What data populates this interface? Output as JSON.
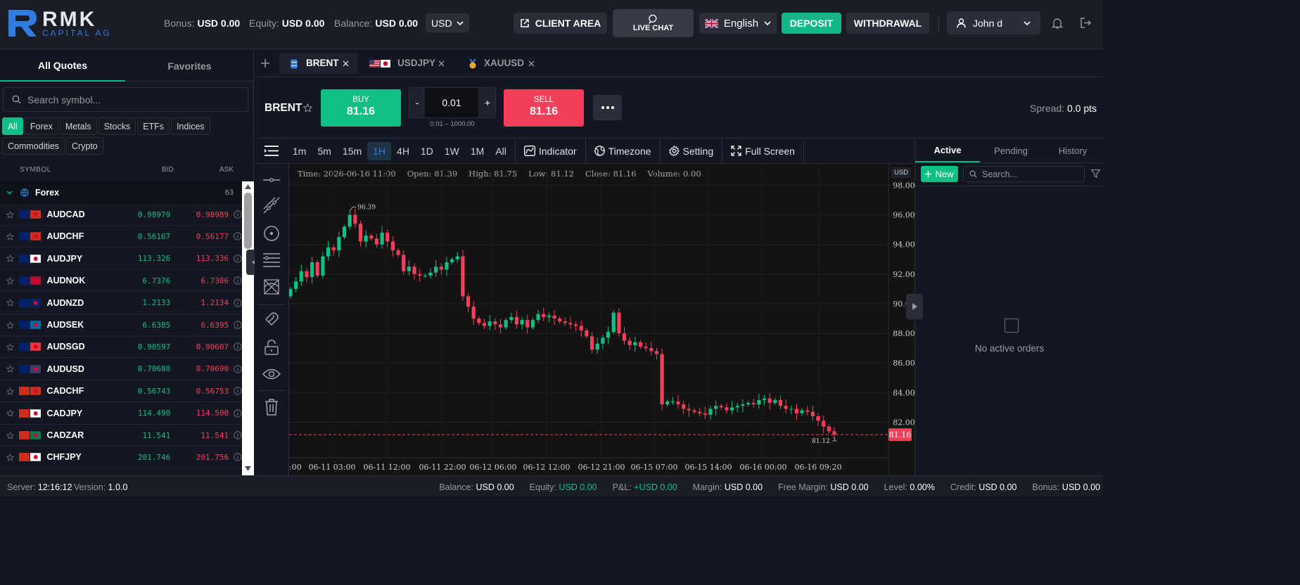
{
  "brand": {
    "name": "RMK",
    "tagline": "CAPITAL AG"
  },
  "header": {
    "bonus_label": "Bonus:",
    "bonus_value": "USD 0.00",
    "equity_label": "Equity:",
    "equity_value": "USD 0.00",
    "balance_label": "Balance:",
    "balance_value": "USD 0.00",
    "currency": "USD",
    "client_area": "CLIENT AREA",
    "live_chat": "LIVE CHAT",
    "language": "English",
    "deposit": "DEPOSIT",
    "withdrawal": "WITHDRAWAL",
    "user": "John d"
  },
  "quotes": {
    "tab_all": "All Quotes",
    "tab_fav": "Favorites",
    "search_placeholder": "Search symbol...",
    "filters": [
      "All",
      "Forex",
      "Metals",
      "Stocks",
      "ETFs",
      "Indices",
      "Commodities",
      "Crypto"
    ],
    "col_symbol": "SYMBOL",
    "col_bid": "BID",
    "col_ask": "ASK",
    "group_name": "Forex",
    "group_count": "63",
    "rows": [
      {
        "symbol": "AUDCAD",
        "bid": "0.98979",
        "ask": "0.98989",
        "f1": "#012169",
        "f2": "#d52b1e"
      },
      {
        "symbol": "AUDCHF",
        "bid": "0.56167",
        "ask": "0.56177",
        "f1": "#012169",
        "f2": "#d52b1e"
      },
      {
        "symbol": "AUDJPY",
        "bid": "113.326",
        "ask": "113.336",
        "f1": "#012169",
        "f2": "#ffffff"
      },
      {
        "symbol": "AUDNOK",
        "bid": "6.7376",
        "ask": "6.7386",
        "f1": "#012169",
        "f2": "#ba0c2f"
      },
      {
        "symbol": "AUDNZD",
        "bid": "1.2133",
        "ask": "1.2134",
        "f1": "#012169",
        "f2": "#012169"
      },
      {
        "symbol": "AUDSEK",
        "bid": "6.6385",
        "ask": "6.6395",
        "f1": "#012169",
        "f2": "#006aa7"
      },
      {
        "symbol": "AUDSGD",
        "bid": "0.90597",
        "ask": "0.90607",
        "f1": "#012169",
        "f2": "#ef3340"
      },
      {
        "symbol": "AUDUSD",
        "bid": "0.70680",
        "ask": "0.70690",
        "f1": "#012169",
        "f2": "#3c3b6e"
      },
      {
        "symbol": "CADCHF",
        "bid": "0.56743",
        "ask": "0.56753",
        "f1": "#d52b1e",
        "f2": "#d52b1e"
      },
      {
        "symbol": "CADJPY",
        "bid": "114.490",
        "ask": "114.500",
        "f1": "#d52b1e",
        "f2": "#ffffff"
      },
      {
        "symbol": "CADZAR",
        "bid": "11.541",
        "ask": "11.541",
        "f1": "#d52b1e",
        "f2": "#007a4d"
      },
      {
        "symbol": "CHFJPY",
        "bid": "201.746",
        "ask": "201.756",
        "f1": "#d52b1e",
        "f2": "#ffffff"
      }
    ]
  },
  "tabs": [
    {
      "symbol": "BRENT"
    },
    {
      "symbol": "USDJPY"
    },
    {
      "symbol": "XAUUSD"
    }
  ],
  "ticket": {
    "symbol": "BRENT",
    "buy_label": "BUY",
    "buy_price": "81.16",
    "sell_label": "SELL",
    "sell_price": "81.16",
    "lot": "0.01",
    "lot_range": "0.01 – 1000.00",
    "minus": "-",
    "plus": "+",
    "spread_label": "Spread:",
    "spread_value": "0.0 pts"
  },
  "toolbar": {
    "timeframes": [
      "1m",
      "5m",
      "15m",
      "1H",
      "4H",
      "1D",
      "1W",
      "1M",
      "All"
    ],
    "active_tf": "1H",
    "indicator": "Indicator",
    "timezone": "Timezone",
    "setting": "Setting",
    "fullscreen": "Full Screen"
  },
  "chart_info": {
    "time": "Time: 2026-06-16 11:00",
    "open": "Open: 81.39",
    "high": "High: 81.75",
    "low": "Low: 81.12",
    "close": "Close: 81.16",
    "volume": "Volume: 0.00",
    "currency": "USD",
    "max_label": "96.39",
    "min_label": "81.12",
    "last_price": "81.16"
  },
  "chart_data": {
    "type": "candlestick",
    "y_ticks": [
      "98.00",
      "96.00",
      "94.00",
      "92.00",
      "90.00",
      "88.00",
      "86.00",
      "84.00",
      "82.00"
    ],
    "ylim": [
      79.6,
      98.4
    ],
    "x_ticks": [
      ":00",
      "06-11 03:00",
      "06-11 12:00",
      "06-11 22:00",
      "06-12 06:00",
      "06-12 12:00",
      "06-12 21:00",
      "06-15 07:00",
      "06-15 14:00",
      "06-16 00:00",
      "06-16 09:20"
    ],
    "close": [
      91.0,
      91.5,
      92.2,
      91.8,
      92.8,
      91.9,
      93.2,
      93.8,
      93.6,
      94.5,
      95.2,
      96.0,
      95.4,
      94.2,
      94.6,
      94.4,
      94.0,
      94.8,
      94.2,
      93.6,
      93.3,
      92.2,
      92.5,
      92.0,
      91.9,
      91.9,
      92.1,
      92.5,
      92.3,
      92.8,
      93.0,
      93.2,
      90.5,
      89.8,
      89.0,
      88.7,
      88.5,
      88.8,
      88.6,
      88.4,
      88.9,
      89.1,
      88.6,
      88.9,
      88.4,
      88.9,
      89.3,
      89.1,
      89.2,
      89.0,
      88.8,
      88.7,
      88.6,
      88.5,
      88.2,
      87.8,
      86.9,
      87.3,
      87.7,
      88.1,
      89.4,
      88.0,
      87.5,
      87.2,
      87.4,
      87.1,
      87.0,
      86.8,
      86.6,
      83.2,
      83.4,
      83.4,
      83.2,
      82.9,
      82.8,
      82.7,
      82.6,
      82.5,
      82.9,
      83.1,
      83.0,
      82.8,
      83.0,
      83.1,
      83.2,
      83.3,
      83.2,
      83.5,
      83.6,
      83.3,
      83.5,
      83.1,
      82.9,
      82.9,
      82.6,
      82.8,
      82.7,
      82.4,
      82.1,
      81.7,
      81.39,
      81.16
    ],
    "max_price": 96.39,
    "min_price": 81.12,
    "last": 81.16
  },
  "orders": {
    "tab_active": "Active",
    "tab_pending": "Pending",
    "tab_history": "History",
    "new": "New",
    "search_placeholder": "Search...",
    "empty": "No active orders"
  },
  "status": {
    "server_label": "Server:",
    "server_time": "12:16:12",
    "version_label": "Version:",
    "version": "1.0.0",
    "balance_label": "Balance:",
    "balance": "USD 0.00",
    "equity_label": "Equity:",
    "equity": "USD 0.00",
    "pnl_label": "P&L:",
    "pnl": "+USD 0.00",
    "margin_label": "Margin:",
    "margin": "USD 0.00",
    "free_margin_label": "Free Margin:",
    "free_margin": "USD 0.00",
    "level_label": "Level:",
    "level": "0.00%",
    "credit_label": "Credit:",
    "credit": "USD 0.00",
    "bonus_label": "Bonus:",
    "bonus": "USD 0.00"
  },
  "colors": {
    "up": "#0fbf85",
    "down": "#f23f5a",
    "accent": "#11b887",
    "brand": "#2f7de1"
  }
}
